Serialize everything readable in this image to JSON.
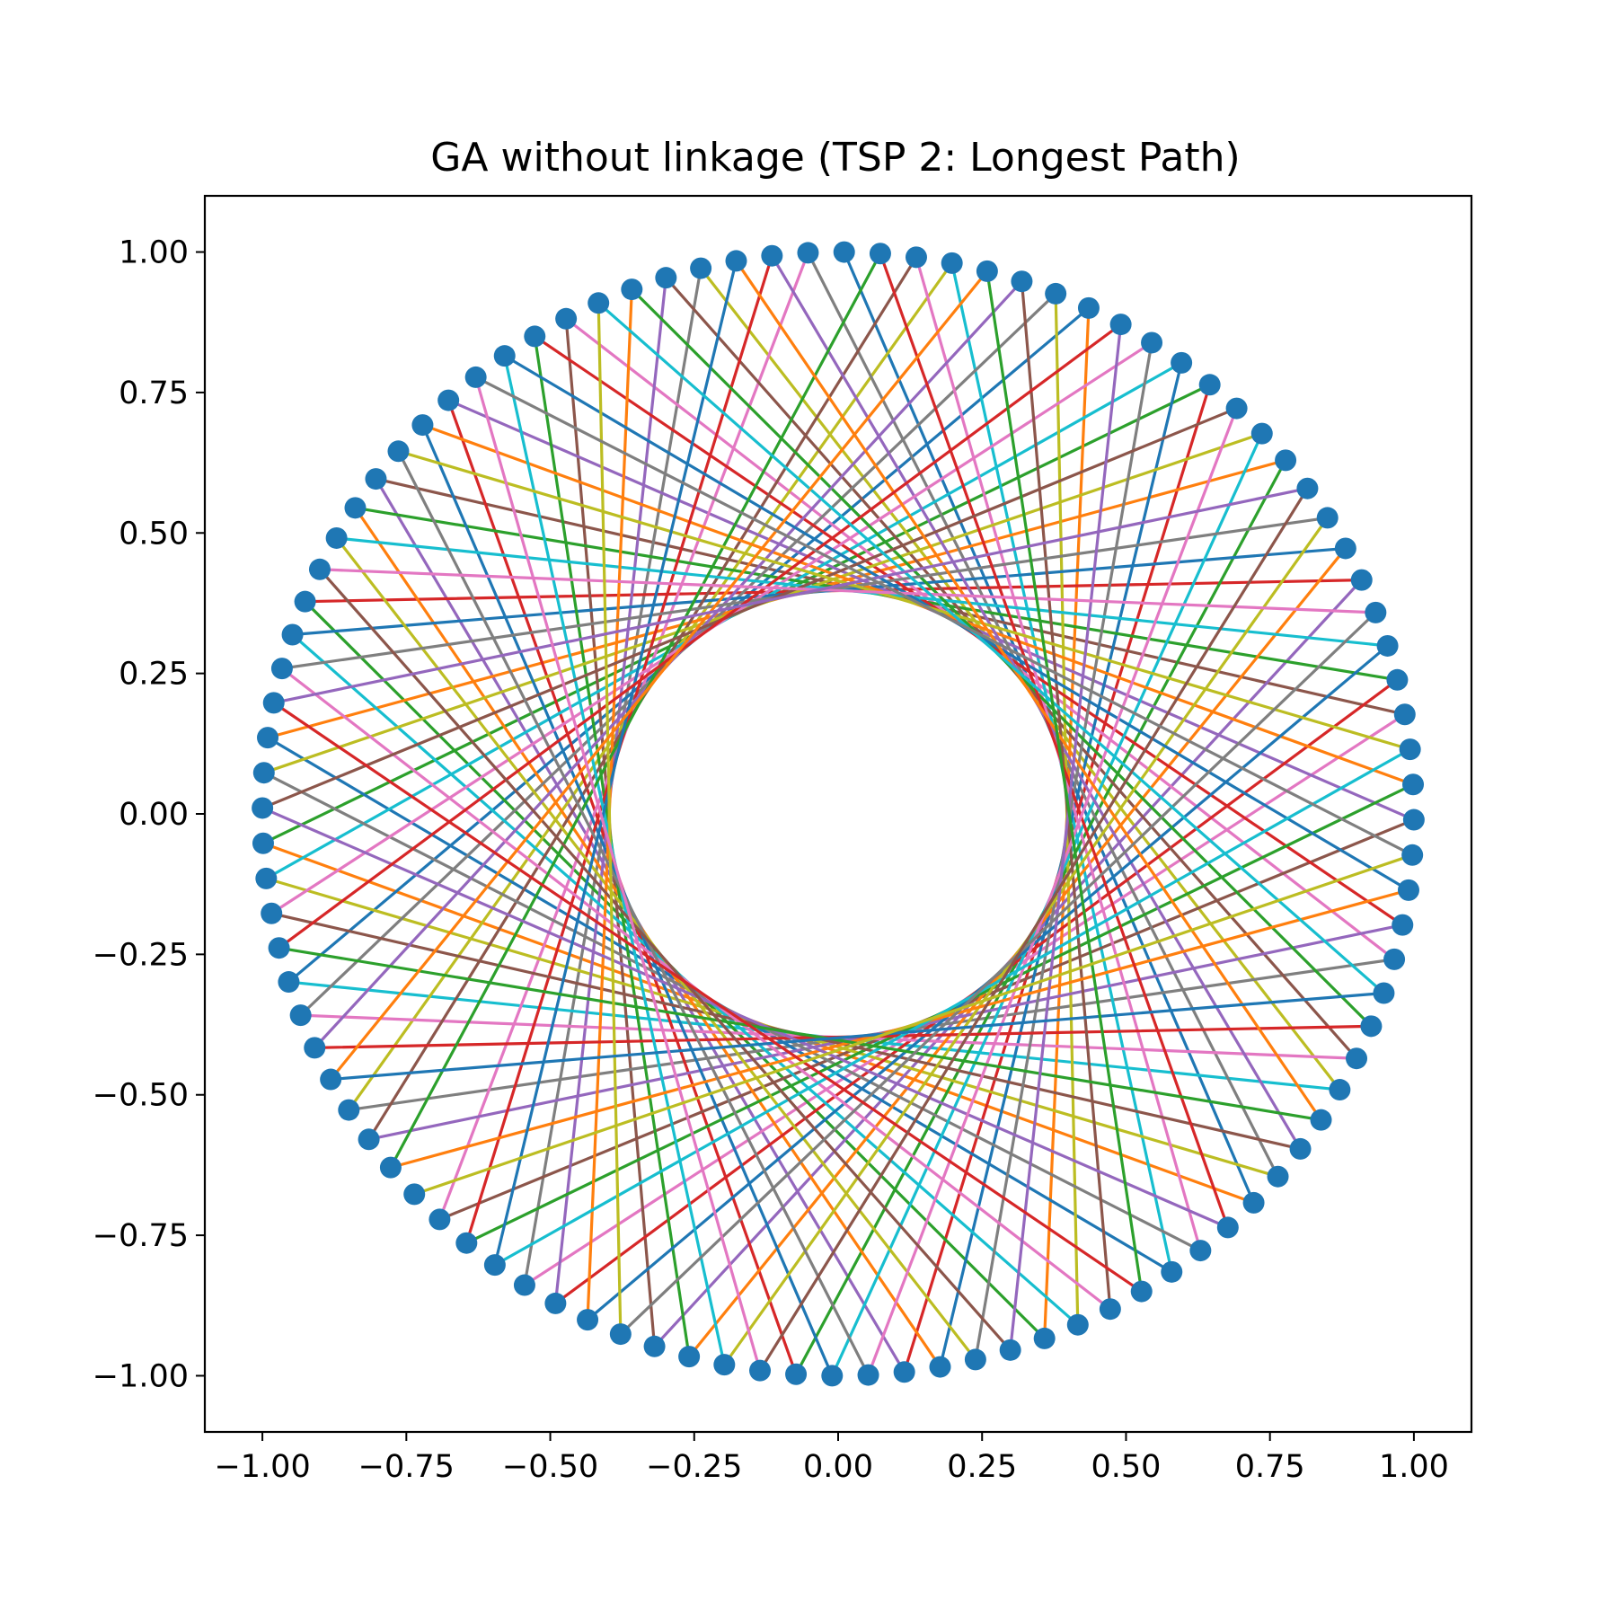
{
  "chart_data": {
    "type": "line",
    "title": "GA without linkage (TSP 2: Longest Path)",
    "xlabel": "",
    "ylabel": "",
    "xlim": [
      -1.1,
      1.1
    ],
    "ylim": [
      -1.1,
      1.1
    ],
    "x_ticks": [
      "−1.00",
      "−0.75",
      "−0.50",
      "−0.25",
      "0.00",
      "0.25",
      "0.50",
      "0.75",
      "1.00"
    ],
    "y_ticks": [
      "−1.00",
      "−0.75",
      "−0.50",
      "−0.25",
      "0.00",
      "0.25",
      "0.50",
      "0.75",
      "1.00"
    ],
    "grid": false,
    "marker_color": "#1f77b4",
    "city_count": 100,
    "city_radius": 1.0,
    "first_city_angle_deg": 89.4,
    "angle_step_deg": 3.6,
    "tour_step": 37,
    "color_cycle": [
      "#1f77b4",
      "#ff7f0e",
      "#2ca02c",
      "#d62728",
      "#9467bd",
      "#8c564b",
      "#e377c2",
      "#7f7f7f",
      "#bcbd22",
      "#17becf"
    ]
  }
}
